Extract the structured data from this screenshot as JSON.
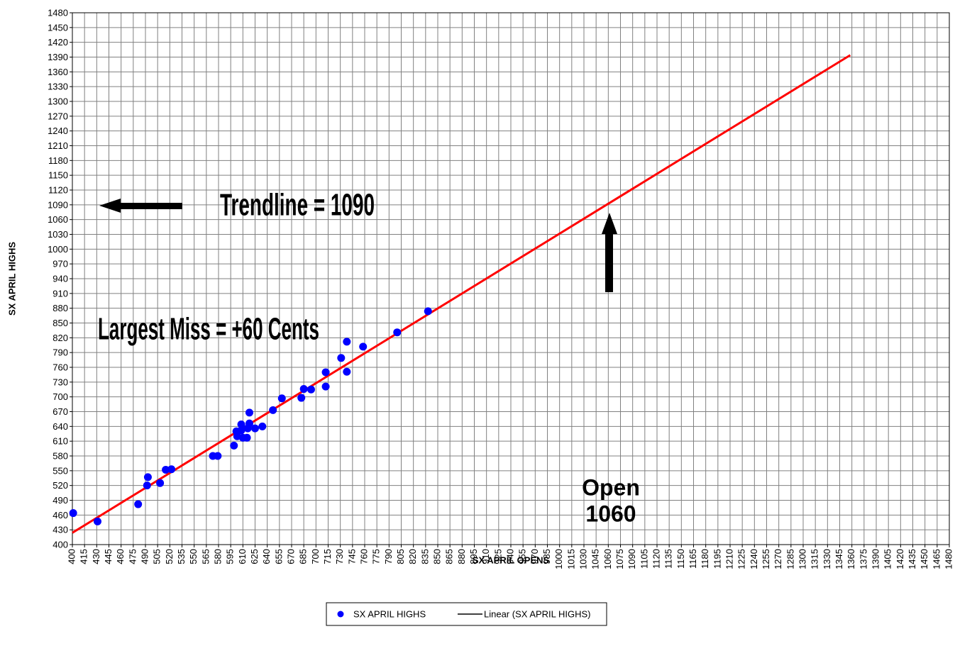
{
  "chart_data": {
    "type": "scatter",
    "xlabel": "SX APRIL OPENS",
    "ylabel": "SX APRIL HIGHS",
    "xlim": [
      400,
      1480
    ],
    "ylim": [
      400,
      1480
    ],
    "xticks": [
      400,
      415,
      430,
      445,
      460,
      475,
      490,
      505,
      520,
      535,
      550,
      565,
      580,
      595,
      610,
      625,
      640,
      655,
      670,
      685,
      700,
      715,
      730,
      745,
      760,
      775,
      790,
      805,
      820,
      835,
      850,
      865,
      880,
      895,
      910,
      925,
      940,
      955,
      970,
      985,
      1000,
      1015,
      1030,
      1045,
      1060,
      1075,
      1090,
      1105,
      1120,
      1135,
      1150,
      1165,
      1180,
      1195,
      1210,
      1225,
      1240,
      1255,
      1270,
      1285,
      1300,
      1315,
      1330,
      1345,
      1360,
      1375,
      1390,
      1405,
      1420,
      1435,
      1450,
      1465,
      1480
    ],
    "yticks": [
      400,
      430,
      460,
      490,
      520,
      550,
      580,
      610,
      640,
      670,
      700,
      730,
      760,
      790,
      820,
      850,
      880,
      910,
      940,
      970,
      1000,
      1030,
      1060,
      1090,
      1120,
      1150,
      1180,
      1210,
      1240,
      1270,
      1300,
      1330,
      1360,
      1390,
      1420,
      1450,
      1480
    ],
    "grid": true,
    "series": [
      {
        "name": "SX APRIL HIGHS",
        "color": "#0000ff",
        "x": [
          401,
          431,
          481,
          492,
          493,
          508,
          515,
          522,
          573,
          579,
          599,
          602,
          603,
          608,
          610,
          608,
          615,
          616,
          618,
          618,
          625,
          634,
          647,
          658,
          682,
          685,
          694,
          712,
          712,
          731,
          738,
          738,
          758,
          800,
          838
        ],
        "values": [
          464,
          447,
          482,
          520,
          537,
          525,
          552,
          553,
          580,
          580,
          601,
          630,
          620,
          632,
          617,
          644,
          617,
          636,
          668,
          646,
          636,
          640,
          673,
          697,
          698,
          716,
          715,
          721,
          750,
          779,
          812,
          751,
          802,
          831,
          874
        ]
      },
      {
        "name": "Linear (SX APRIL HIGHS)",
        "color": "#ff0000",
        "x": [
          400,
          1358
        ],
        "values": [
          424,
          1394
        ]
      }
    ],
    "annotations": [
      "Trendline = 1090",
      "Largest Miss = +60 Cents",
      "Open",
      "1060"
    ],
    "legend": "bottom"
  }
}
